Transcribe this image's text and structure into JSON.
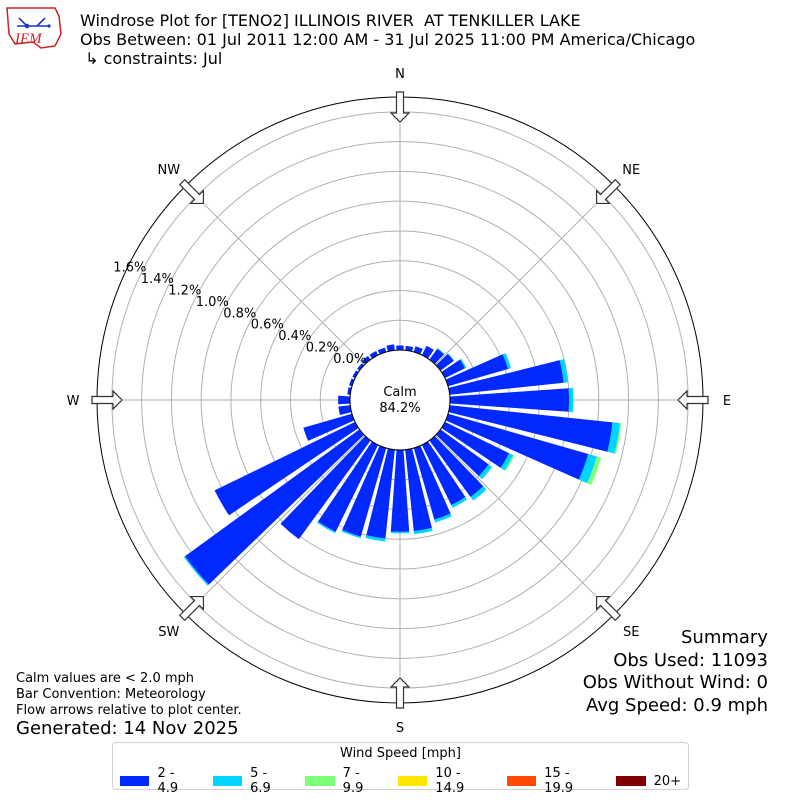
{
  "logo": {
    "text": "IEM",
    "color": "#cc2222"
  },
  "title": {
    "line1": "Windrose Plot for [TENO2] ILLINOIS RIVER  AT TENKILLER LAKE",
    "line2": "Obs Between: 01 Jul 2011 12:00 AM - 31 Jul 2025 11:00 PM America/Chicago",
    "line3": " ↳ constraints: Jul"
  },
  "summary": {
    "heading": "Summary",
    "obs_used": "Obs Used: 11093",
    "obs_without_wind": "Obs Without Wind: 0",
    "avg_speed": "Avg Speed: 0.9 mph"
  },
  "notes": {
    "calm": "Calm values are < 2.0 mph",
    "convention": "Bar Convention: Meteorology",
    "flow": "Flow arrows relative to plot center."
  },
  "generated": "Generated: 14 Nov 2025",
  "legend": {
    "title": "Wind Speed [mph]",
    "items": [
      {
        "label": "2 - 4.9",
        "color": "#0028ff"
      },
      {
        "label": "5 - 6.9",
        "color": "#00d4ff"
      },
      {
        "label": "7 - 9.9",
        "color": "#7dff7a"
      },
      {
        "label": "10 - 14.9",
        "color": "#ffe600"
      },
      {
        "label": "15 - 19.9",
        "color": "#ff4a00"
      },
      {
        "label": "20+",
        "color": "#800000"
      }
    ]
  },
  "chart_data": {
    "type": "windrose",
    "calm": {
      "label": "Calm",
      "value": "84.2%"
    },
    "directions": [
      "N",
      "NE",
      "E",
      "SE",
      "S",
      "SW",
      "W",
      "NW"
    ],
    "radial_ticks": [
      "0.0%",
      "0.2%",
      "0.4%",
      "0.6%",
      "0.8%",
      "1.0%",
      "1.2%",
      "1.4%",
      "1.6%"
    ],
    "rlim": [
      0,
      1.7
    ],
    "bin_width_deg": 10,
    "bins": [
      "2 - 4.9",
      "5 - 6.9",
      "7 - 9.9",
      "10 - 14.9",
      "15 - 19.9",
      "20+"
    ],
    "sectors": [
      {
        "dir": 0,
        "values": [
          0.03,
          0,
          0,
          0,
          0,
          0
        ]
      },
      {
        "dir": 10,
        "values": [
          0.03,
          0,
          0,
          0,
          0,
          0
        ]
      },
      {
        "dir": 20,
        "values": [
          0.04,
          0,
          0,
          0,
          0,
          0
        ]
      },
      {
        "dir": 30,
        "values": [
          0.07,
          0,
          0,
          0,
          0,
          0
        ]
      },
      {
        "dir": 40,
        "values": [
          0.09,
          0.005,
          0,
          0,
          0,
          0
        ]
      },
      {
        "dir": 50,
        "values": [
          0.11,
          0.005,
          0,
          0,
          0,
          0
        ]
      },
      {
        "dir": 60,
        "values": [
          0.15,
          0.01,
          0,
          0,
          0,
          0
        ]
      },
      {
        "dir": 70,
        "values": [
          0.42,
          0.02,
          0,
          0,
          0,
          0
        ]
      },
      {
        "dir": 80,
        "values": [
          0.77,
          0.03,
          0,
          0,
          0,
          0
        ]
      },
      {
        "dir": 90,
        "values": [
          0.8,
          0.03,
          0,
          0,
          0,
          0
        ]
      },
      {
        "dir": 100,
        "values": [
          1.1,
          0.05,
          0.01,
          0,
          0,
          0
        ]
      },
      {
        "dir": 110,
        "values": [
          0.98,
          0.06,
          0.03,
          0,
          0,
          0
        ]
      },
      {
        "dir": 120,
        "values": [
          0.48,
          0.03,
          0.01,
          0,
          0,
          0
        ]
      },
      {
        "dir": 130,
        "values": [
          0.4,
          0.03,
          0,
          0,
          0,
          0
        ]
      },
      {
        "dir": 140,
        "values": [
          0.47,
          0.03,
          0,
          0,
          0,
          0
        ]
      },
      {
        "dir": 150,
        "values": [
          0.45,
          0.02,
          0,
          0,
          0,
          0
        ]
      },
      {
        "dir": 160,
        "values": [
          0.5,
          0.02,
          0,
          0,
          0,
          0
        ]
      },
      {
        "dir": 170,
        "values": [
          0.55,
          0.02,
          0,
          0,
          0,
          0
        ]
      },
      {
        "dir": 180,
        "values": [
          0.55,
          0.01,
          0,
          0,
          0,
          0
        ]
      },
      {
        "dir": 190,
        "values": [
          0.6,
          0.02,
          0,
          0,
          0,
          0
        ]
      },
      {
        "dir": 200,
        "values": [
          0.62,
          0.01,
          0,
          0,
          0,
          0
        ]
      },
      {
        "dir": 210,
        "values": [
          0.65,
          0.01,
          0,
          0,
          0,
          0
        ]
      },
      {
        "dir": 220,
        "values": [
          0.82,
          0,
          0,
          0,
          0,
          0
        ]
      },
      {
        "dir": 230,
        "values": [
          1.45,
          0.01,
          0,
          0,
          0,
          0
        ]
      },
      {
        "dir": 240,
        "values": [
          1.05,
          0,
          0,
          0,
          0,
          0
        ]
      },
      {
        "dir": 250,
        "values": [
          0.34,
          0,
          0,
          0,
          0,
          0
        ]
      },
      {
        "dir": 260,
        "values": [
          0.08,
          0,
          0,
          0,
          0,
          0
        ]
      },
      {
        "dir": 270,
        "values": [
          0.08,
          0,
          0,
          0,
          0,
          0
        ]
      },
      {
        "dir": 280,
        "values": [
          0.02,
          0,
          0,
          0,
          0,
          0
        ]
      },
      {
        "dir": 290,
        "values": [
          0.02,
          0,
          0,
          0,
          0,
          0
        ]
      },
      {
        "dir": 300,
        "values": [
          0.02,
          0,
          0,
          0,
          0,
          0
        ]
      },
      {
        "dir": 310,
        "values": [
          0.02,
          0,
          0,
          0,
          0,
          0
        ]
      },
      {
        "dir": 320,
        "values": [
          0.03,
          0,
          0,
          0,
          0,
          0
        ]
      },
      {
        "dir": 330,
        "values": [
          0.03,
          0,
          0,
          0,
          0,
          0
        ]
      },
      {
        "dir": 340,
        "values": [
          0.03,
          0,
          0,
          0,
          0,
          0
        ]
      },
      {
        "dir": 350,
        "values": [
          0.04,
          0,
          0,
          0,
          0,
          0
        ]
      }
    ]
  }
}
